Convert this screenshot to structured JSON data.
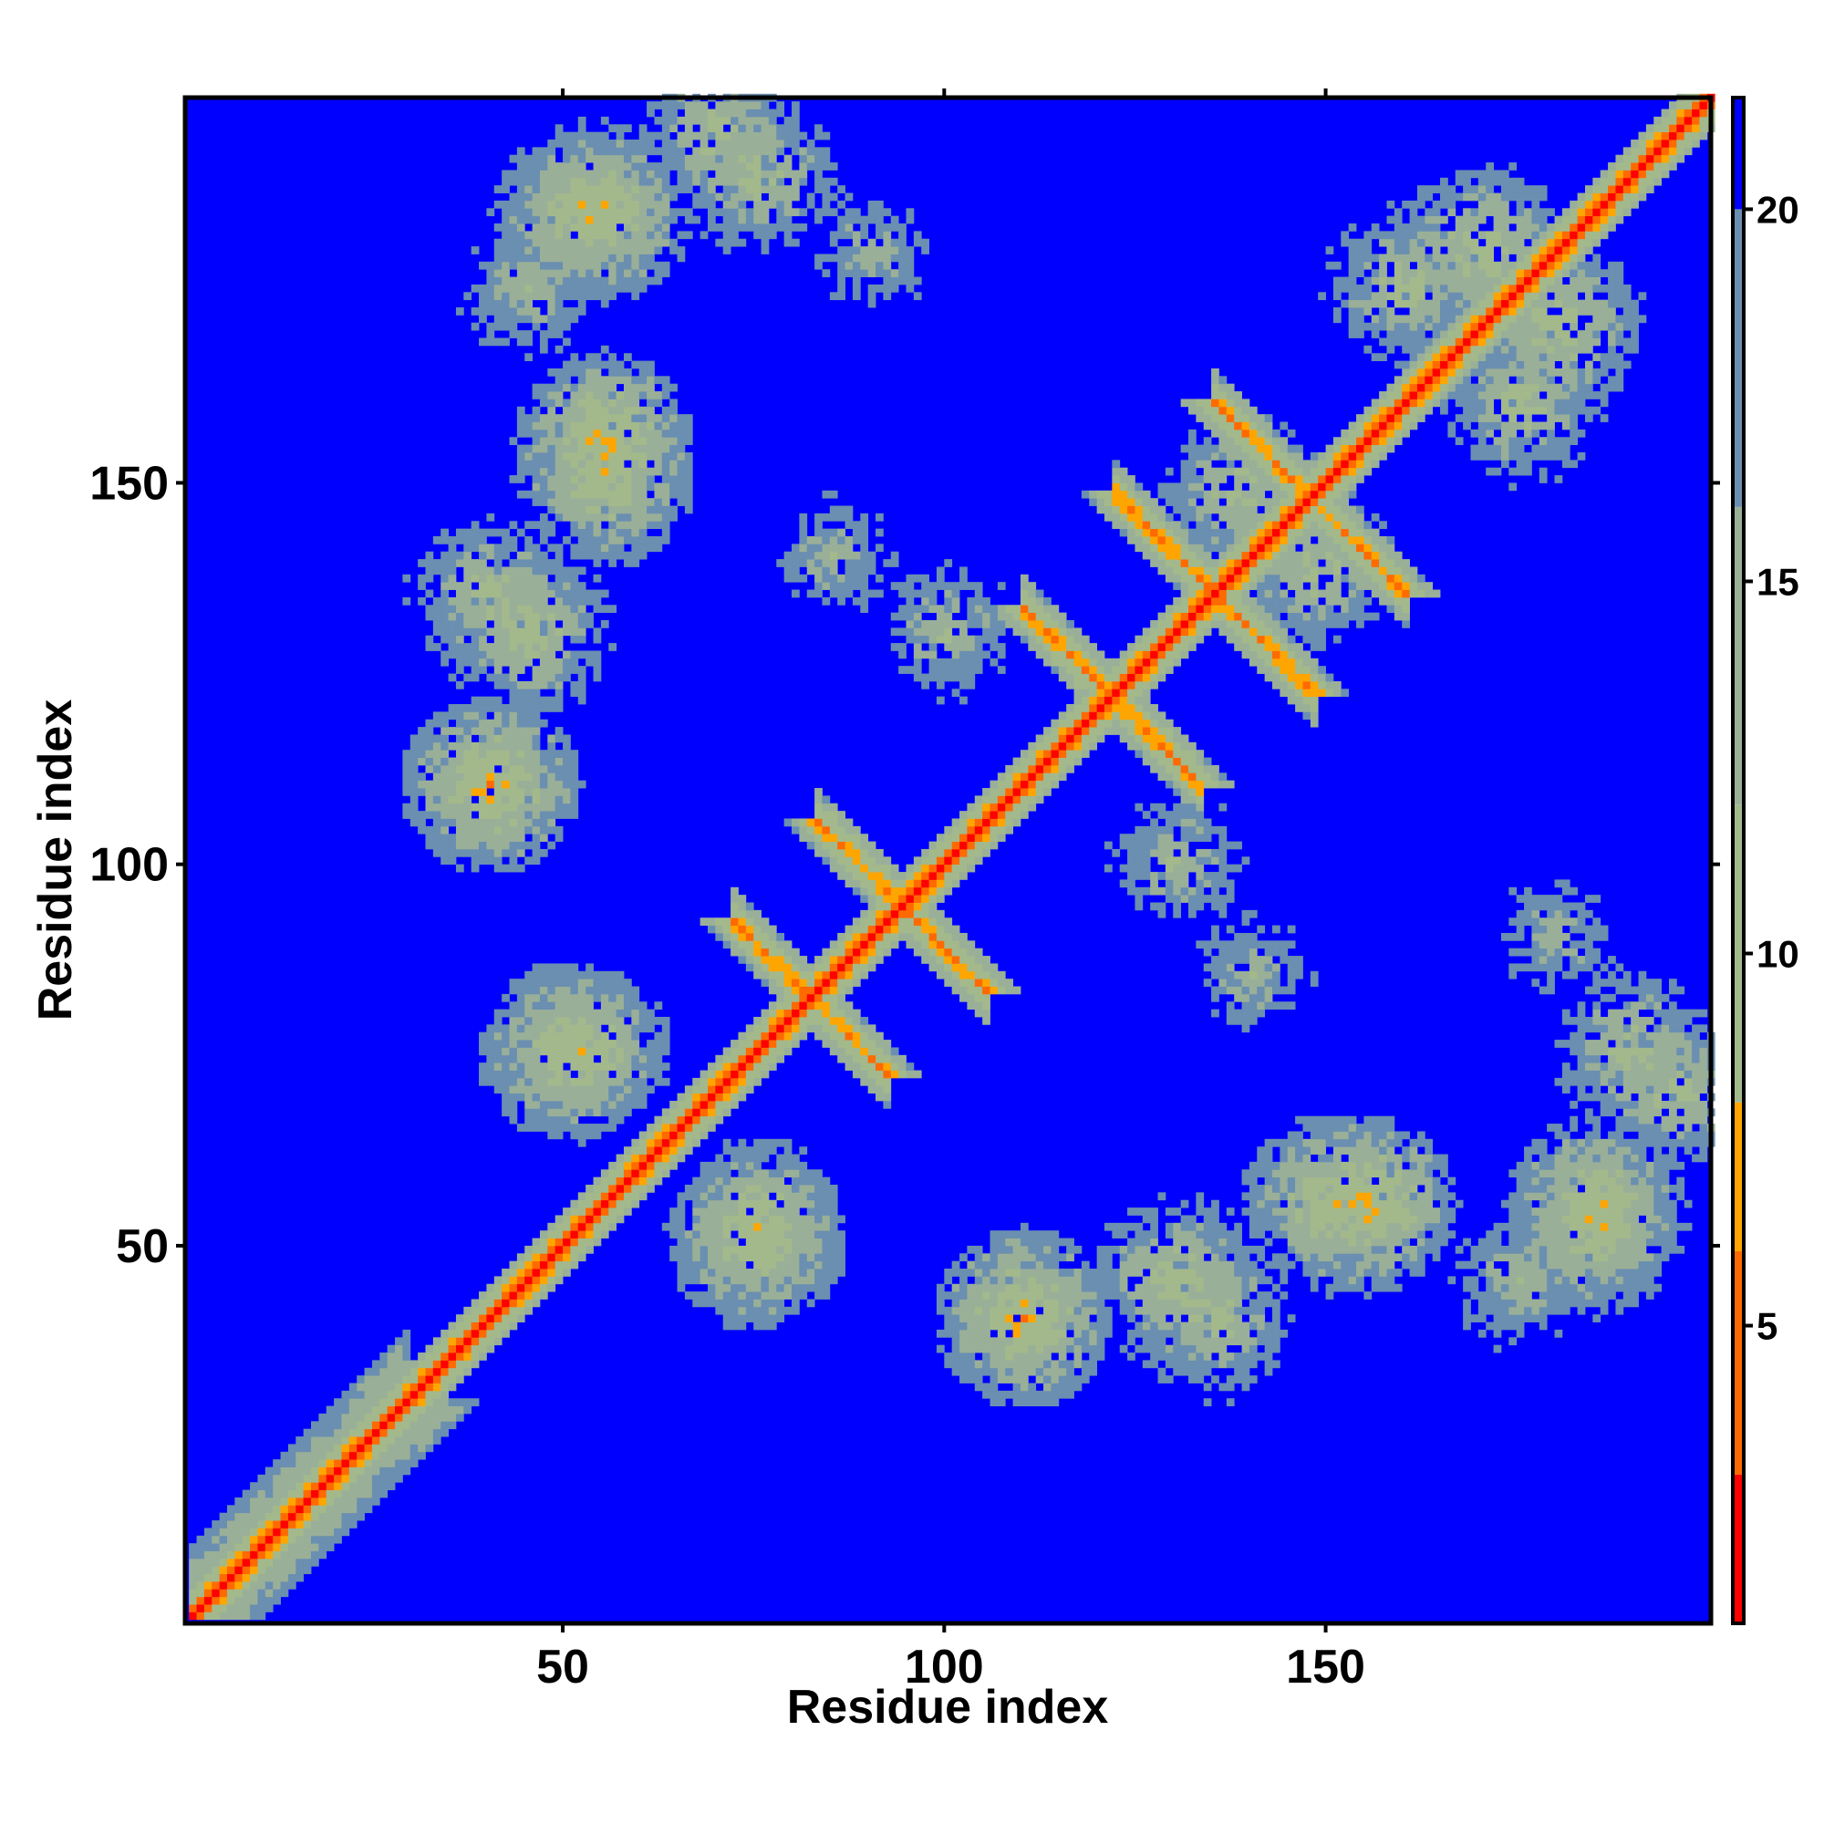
{
  "chart_data": {
    "type": "heatmap",
    "title": "",
    "xlabel": "Residue index",
    "ylabel": "Residue index",
    "n_residues": 200,
    "xlim": [
      1,
      200
    ],
    "ylim": [
      1,
      200
    ],
    "x_ticks": [
      50,
      100,
      150
    ],
    "y_ticks": [
      50,
      100,
      150
    ],
    "x_tick_labels": [
      "50",
      "100",
      "150"
    ],
    "y_tick_labels": [
      "50",
      "100",
      "150"
    ],
    "colorbar": {
      "ticks": [
        5,
        10,
        15,
        20
      ],
      "tick_labels": [
        "5",
        "10",
        "15",
        "20"
      ],
      "range": [
        1,
        21.5
      ],
      "scale": [
        {
          "max": 3,
          "color": "#ff0000"
        },
        {
          "max": 6,
          "color": "#ff6a00"
        },
        {
          "max": 8,
          "color": "#ffa500"
        },
        {
          "max": 12,
          "color": "#a3b98c"
        },
        {
          "max": 16,
          "color": "#9aaf98"
        },
        {
          "max": 20,
          "color": "#6a8fb0"
        },
        {
          "max": 21.5,
          "color": "#0000ff"
        }
      ]
    },
    "background_color": "#0000ff",
    "value_semantics": "pairwise residue distance; values above 20 shown as background blue",
    "structure": {
      "diagonal": {
        "value": 2
      },
      "near_diagonal_bands": [
        {
          "offset": 1,
          "value": 5
        },
        {
          "offset": 2,
          "value": 8
        },
        {
          "offset": 3,
          "value": 11
        },
        {
          "offset": 4,
          "value": 14
        }
      ],
      "antidiagonal_contacts": [
        {
          "from": [
            72,
            92
          ],
          "to": [
            92,
            72
          ],
          "value": 6
        },
        {
          "from": [
            83,
            105
          ],
          "to": [
            105,
            83
          ],
          "value": 6
        },
        {
          "from": [
            110,
            133
          ],
          "to": [
            133,
            110
          ],
          "value": 6
        },
        {
          "from": [
            122,
            148
          ],
          "to": [
            148,
            122
          ],
          "value": 6
        },
        {
          "from": [
            135,
            160
          ],
          "to": [
            160,
            135
          ],
          "value": 6
        }
      ],
      "contact_blobs": [
        {
          "x": 55,
          "y": 150,
          "value": 8
        },
        {
          "x": 40,
          "y": 135,
          "value": 10
        },
        {
          "x": 52,
          "y": 185,
          "value": 8
        },
        {
          "x": 70,
          "y": 195,
          "value": 10
        },
        {
          "x": 40,
          "y": 110,
          "value": 9
        },
        {
          "x": 50,
          "y": 75,
          "value": 8
        },
        {
          "x": 75,
          "y": 52,
          "value": 8
        },
        {
          "x": 110,
          "y": 40,
          "value": 7
        },
        {
          "x": 130,
          "y": 45,
          "value": 9
        },
        {
          "x": 155,
          "y": 55,
          "value": 7
        },
        {
          "x": 185,
          "y": 55,
          "value": 8
        },
        {
          "x": 190,
          "y": 75,
          "value": 10
        },
        {
          "x": 175,
          "y": 45,
          "value": 12
        },
        {
          "x": 148,
          "y": 138,
          "value": 10
        },
        {
          "x": 170,
          "y": 180,
          "value": 9
        },
        {
          "x": 175,
          "y": 160,
          "value": 10
        },
        {
          "x": 100,
          "y": 130,
          "value": 12
        },
        {
          "x": 85,
          "y": 140,
          "value": 13
        },
        {
          "x": 90,
          "y": 180,
          "value": 13
        }
      ]
    }
  }
}
